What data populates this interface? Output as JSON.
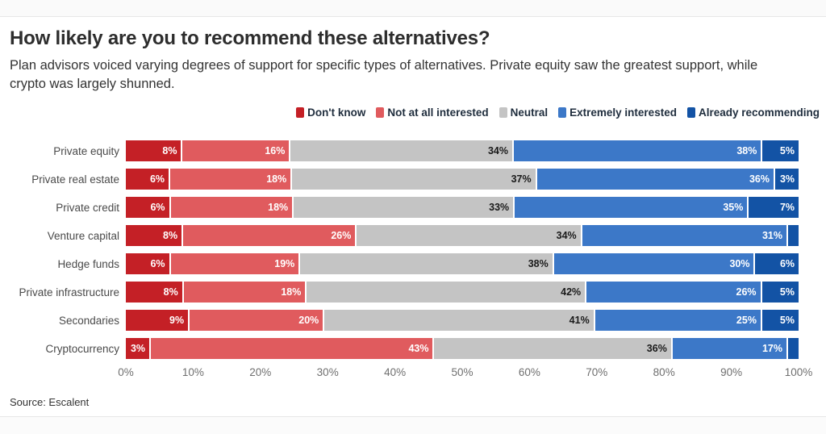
{
  "page": {
    "title": "How likely are you to recommend these alternatives?",
    "subtitle": "Plan advisors voiced varying degrees of support for specific types of alternatives. Private equity saw the greatest support, while crypto was largely shunned.",
    "source": "Source: Escalent"
  },
  "chart_data": {
    "type": "bar",
    "orientation": "horizontal",
    "stacked": true,
    "stack_total": 100,
    "unit": "%",
    "title": "How likely are you to recommend these alternatives?",
    "categories": [
      "Private equity",
      "Private real estate",
      "Private credit",
      "Venture capital",
      "Hedge funds",
      "Private infrastructure",
      "Secondaries",
      "Cryptocurrency"
    ],
    "series": [
      {
        "name": "Don't know",
        "color": "#c42026",
        "text_color": "#ffffff",
        "values": [
          8,
          6,
          6,
          8,
          6,
          8,
          9,
          3
        ]
      },
      {
        "name": "Not at all interested",
        "color": "#e05b5e",
        "text_color": "#ffffff",
        "values": [
          16,
          18,
          18,
          26,
          19,
          18,
          20,
          43
        ]
      },
      {
        "name": "Neutral",
        "color": "#c4c4c4",
        "text_color": "#1a1a1a",
        "values": [
          34,
          37,
          33,
          34,
          38,
          42,
          41,
          36
        ]
      },
      {
        "name": "Extremely interested",
        "color": "#3c78c8",
        "text_color": "#ffffff",
        "values": [
          38,
          36,
          35,
          31,
          30,
          26,
          25,
          17
        ]
      },
      {
        "name": "Already recommending",
        "color": "#1353a5",
        "text_color": "#ffffff",
        "values": [
          5,
          3,
          7,
          1,
          6,
          5,
          5,
          1
        ]
      }
    ],
    "data_labels": [
      [
        "8%",
        "16%",
        "34%",
        "38%",
        "5%"
      ],
      [
        "6%",
        "18%",
        "37%",
        "36%",
        "3%"
      ],
      [
        "6%",
        "18%",
        "33%",
        "35%",
        "7%"
      ],
      [
        "8%",
        "26%",
        "34%",
        "31%",
        ""
      ],
      [
        "6%",
        "19%",
        "38%",
        "30%",
        "6%"
      ],
      [
        "8%",
        "18%",
        "42%",
        "26%",
        "5%"
      ],
      [
        "9%",
        "20%",
        "41%",
        "25%",
        "5%"
      ],
      [
        "3%",
        "43%",
        "36%",
        "17%",
        ""
      ]
    ],
    "x_ticks": [
      "0%",
      "10%",
      "20%",
      "30%",
      "40%",
      "50%",
      "60%",
      "70%",
      "80%",
      "90%",
      "100%"
    ],
    "xlim": [
      0,
      100
    ],
    "grid": false,
    "legend_position": "top-right"
  }
}
